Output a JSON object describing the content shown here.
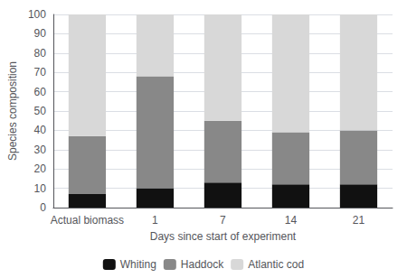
{
  "chart_data": {
    "type": "bar",
    "stacked": true,
    "categories": [
      "Actual biomass",
      "1",
      "7",
      "14",
      "21"
    ],
    "series": [
      {
        "name": "Whiting",
        "color": "#111111",
        "values": [
          7,
          10,
          13,
          12,
          12
        ]
      },
      {
        "name": "Haddock",
        "color": "#888888",
        "values": [
          30,
          58,
          32,
          27,
          28
        ]
      },
      {
        "name": "Atlantic cod",
        "color": "#d8d8d8",
        "values": [
          63,
          32,
          55,
          61,
          60
        ]
      }
    ],
    "xlabel": "Days since start of experiment",
    "ylabel": "Species composition",
    "ylim": [
      0,
      100
    ],
    "yticks": [
      0,
      10,
      20,
      30,
      40,
      50,
      60,
      70,
      80,
      90,
      100
    ],
    "grid": true,
    "legend": "bottom"
  }
}
